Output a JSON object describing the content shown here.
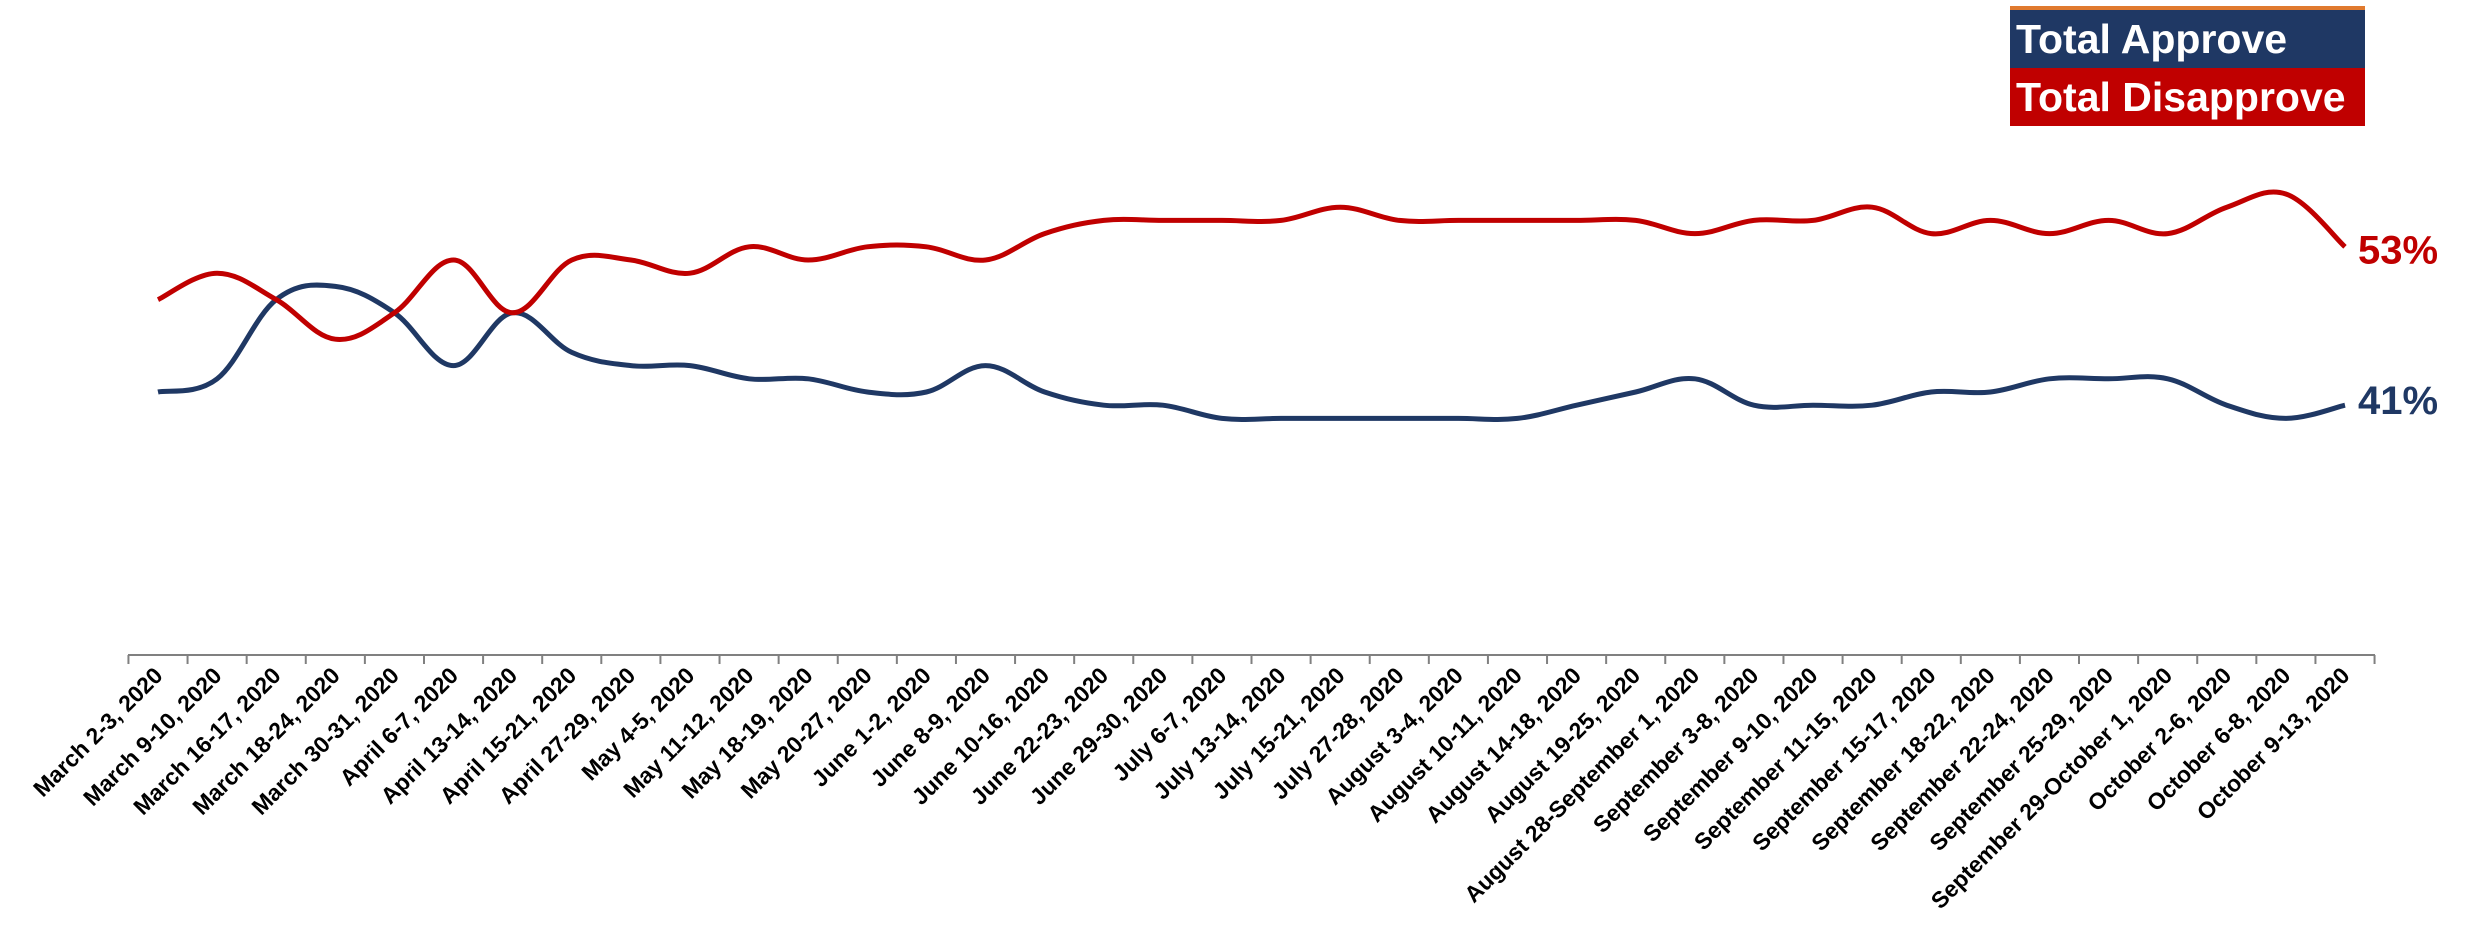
{
  "chart_data": {
    "type": "line",
    "categories": [
      "March 2-3, 2020",
      "March 9-10, 2020",
      "March 16-17, 2020",
      "March 18-24, 2020",
      "March 30-31, 2020",
      "April 6-7, 2020",
      "April 13-14, 2020",
      "April 15-21, 2020",
      "April 27-29, 2020",
      "May 4-5, 2020",
      "May 11-12, 2020",
      "May 18-19, 2020",
      "May 20-27, 2020",
      "June 1-2, 2020",
      "June 8-9, 2020",
      "June 10-16, 2020",
      "June 22-23, 2020",
      "June 29-30, 2020",
      "July 6-7, 2020",
      "July 13-14, 2020",
      "July 15-21, 2020",
      "July 27-28, 2020",
      "August 3-4, 2020",
      "August 10-11, 2020",
      "August 14-18, 2020",
      "August 19-25, 2020",
      "August 28-September 1, 2020",
      "September 3-8, 2020",
      "September 9-10, 2020",
      "September 11-15, 2020",
      "September 15-17, 2020",
      "September 18-22, 2020",
      "September 22-24, 2020",
      "September 25-29, 2020",
      "September 29-October 1, 2020",
      "October 2-6, 2020",
      "October 6-8, 2020",
      "October 9-13, 2020"
    ],
    "series": [
      {
        "name": "Total Approve",
        "color": "#1f3864",
        "values": [
          42,
          43,
          49,
          50,
          48,
          44,
          48,
          45,
          44,
          44,
          43,
          43,
          42,
          42,
          44,
          42,
          41,
          41,
          40,
          40,
          40,
          40,
          40,
          40,
          41,
          42,
          43,
          41,
          41,
          41,
          42,
          42,
          43,
          43,
          43,
          41,
          40,
          41
        ]
      },
      {
        "name": "Total Disapprove",
        "color": "#c00000",
        "values": [
          49,
          51,
          49,
          46,
          48,
          52,
          48,
          52,
          52,
          51,
          53,
          52,
          53,
          53,
          52,
          54,
          55,
          55,
          55,
          55,
          56,
          55,
          55,
          55,
          55,
          55,
          54,
          55,
          55,
          56,
          54,
          55,
          54,
          55,
          54,
          56,
          57,
          53
        ]
      }
    ],
    "end_labels": [
      "41%",
      "53%"
    ],
    "legend_placement": "top-right",
    "grid": false
  },
  "legend": {
    "approve_label": "Total Approve",
    "disapprove_label": "Total Disapprove"
  }
}
